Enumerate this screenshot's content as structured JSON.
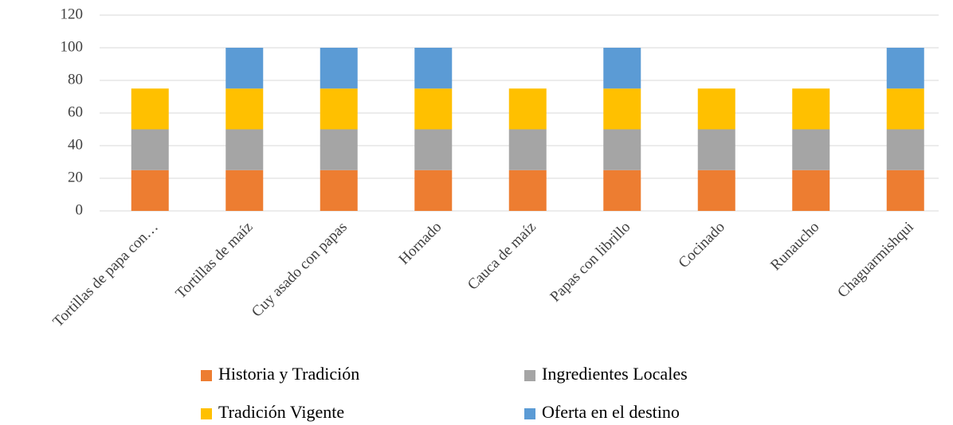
{
  "chart_data": {
    "type": "stacked-bar",
    "categories": [
      "Tortillas de papa con…",
      "Tortillas de maíz",
      "Cuy asado con papas",
      "Hornado",
      "Cauca de maíz",
      "Papas con librillo",
      "Cocinado",
      "Runaucho",
      "Chaguarmishqui"
    ],
    "series": [
      {
        "name": "Historia y Tradición",
        "color": "#ED7D31",
        "values": [
          25,
          25,
          25,
          25,
          25,
          25,
          25,
          25,
          25
        ]
      },
      {
        "name": "Ingredientes Locales",
        "color": "#A5A5A5",
        "values": [
          25,
          25,
          25,
          25,
          25,
          25,
          25,
          25,
          25
        ]
      },
      {
        "name": "Tradición Vigente",
        "color": "#FFC000",
        "values": [
          25,
          25,
          25,
          25,
          25,
          25,
          25,
          25,
          25
        ]
      },
      {
        "name": "Oferta en el destino",
        "color": "#5B9BD5",
        "values": [
          0,
          25,
          25,
          25,
          0,
          25,
          0,
          0,
          25
        ]
      }
    ],
    "ylim": [
      0,
      120
    ],
    "yticks": [
      0,
      20,
      40,
      60,
      80,
      100,
      120
    ],
    "grid": true,
    "legend": "bottom"
  }
}
